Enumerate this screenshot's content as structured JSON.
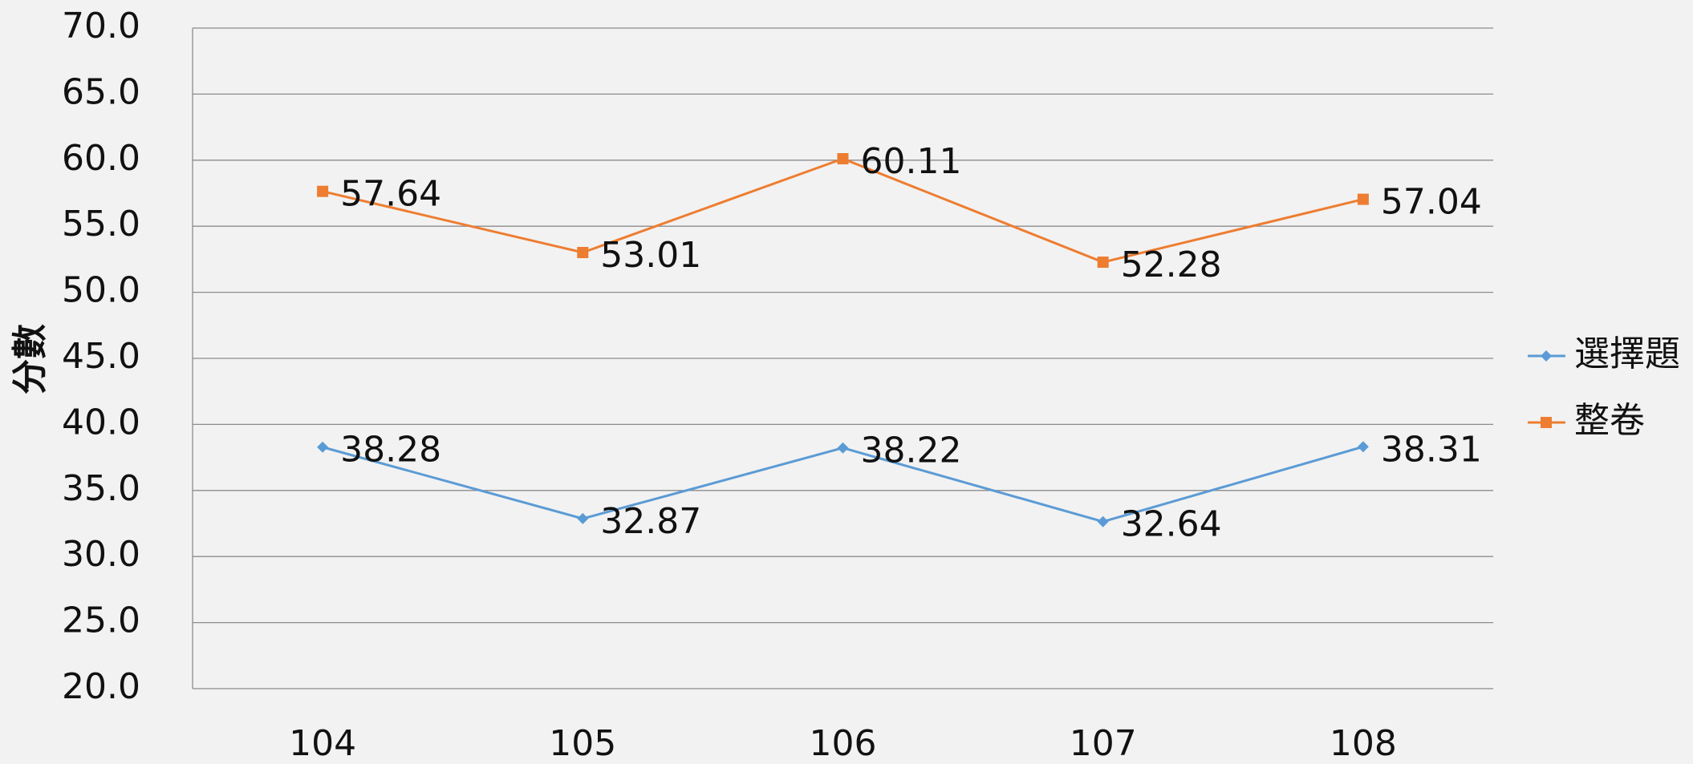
{
  "chart_data": {
    "type": "line",
    "categories": [
      "104",
      "105",
      "106",
      "107",
      "108"
    ],
    "y_label": "分數",
    "series": [
      {
        "name": "選擇題",
        "color": "#5b9bd5",
        "marker": "diamond",
        "values": [
          38.28,
          32.87,
          38.22,
          32.64,
          38.31
        ]
      },
      {
        "name": "整卷",
        "color": "#ed7d31",
        "marker": "square",
        "values": [
          57.64,
          53.01,
          60.11,
          52.28,
          57.04
        ]
      }
    ],
    "ylim": [
      20,
      70
    ],
    "yticks": [
      {
        "value": 20,
        "label": "20.0"
      },
      {
        "value": 25,
        "label": "25.0"
      },
      {
        "value": 30,
        "label": "30.0"
      },
      {
        "value": 35,
        "label": "35.0"
      },
      {
        "value": 40,
        "label": "40.0"
      },
      {
        "value": 45,
        "label": "45.0"
      },
      {
        "value": 50,
        "label": "50.0"
      },
      {
        "value": 55,
        "label": "55.0"
      },
      {
        "value": 60,
        "label": "60.0"
      },
      {
        "value": 65,
        "label": "65.0"
      },
      {
        "value": 70,
        "label": "70.0"
      }
    ],
    "grid": true,
    "legend": "right"
  }
}
